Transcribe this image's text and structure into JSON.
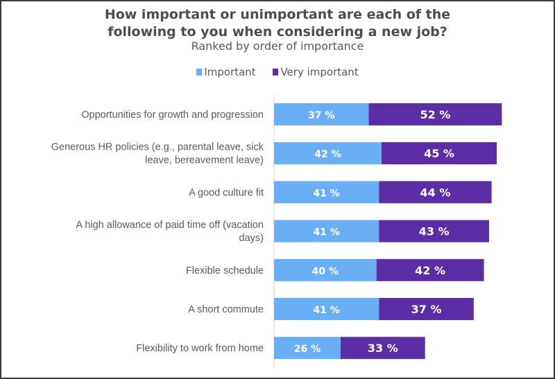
{
  "chart_data": {
    "type": "bar",
    "orientation": "horizontal",
    "stacked": true,
    "title": "How important or unimportant are each of the following to you when considering a new job?",
    "title_lines": [
      "How important or unimportant are each of the",
      "following to you when considering a new job?"
    ],
    "subtitle": "Ranked by order of importance",
    "legend_position": "top",
    "grid": false,
    "categories": [
      "Opportunities for growth and progression",
      "Generous HR policies (e.g., parental leave, sick leave, bereavement leave)",
      "A good culture fit",
      "A high allowance of paid time off (vacation days)",
      "Flexible schedule",
      "A short commute",
      "Flexibility to work from home"
    ],
    "category_lines": [
      [
        "Opportunities for growth and progression"
      ],
      [
        "Generous HR policies (e.g., parental leave, sick",
        "leave, bereavement leave)"
      ],
      [
        "A good culture fit"
      ],
      [
        "A high allowance of paid time off (vacation",
        "days)"
      ],
      [
        "Flexible schedule"
      ],
      [
        "A short commute"
      ],
      [
        "Flexibility to work from home"
      ]
    ],
    "series": [
      {
        "name": "Important",
        "color": "#6aaef5",
        "values": [
          37,
          42,
          41,
          41,
          40,
          41,
          26
        ]
      },
      {
        "name": "Very important",
        "color": "#5b2ea6",
        "values": [
          52,
          45,
          44,
          43,
          42,
          37,
          33
        ]
      }
    ],
    "value_suffix": " %",
    "unit": "%"
  }
}
